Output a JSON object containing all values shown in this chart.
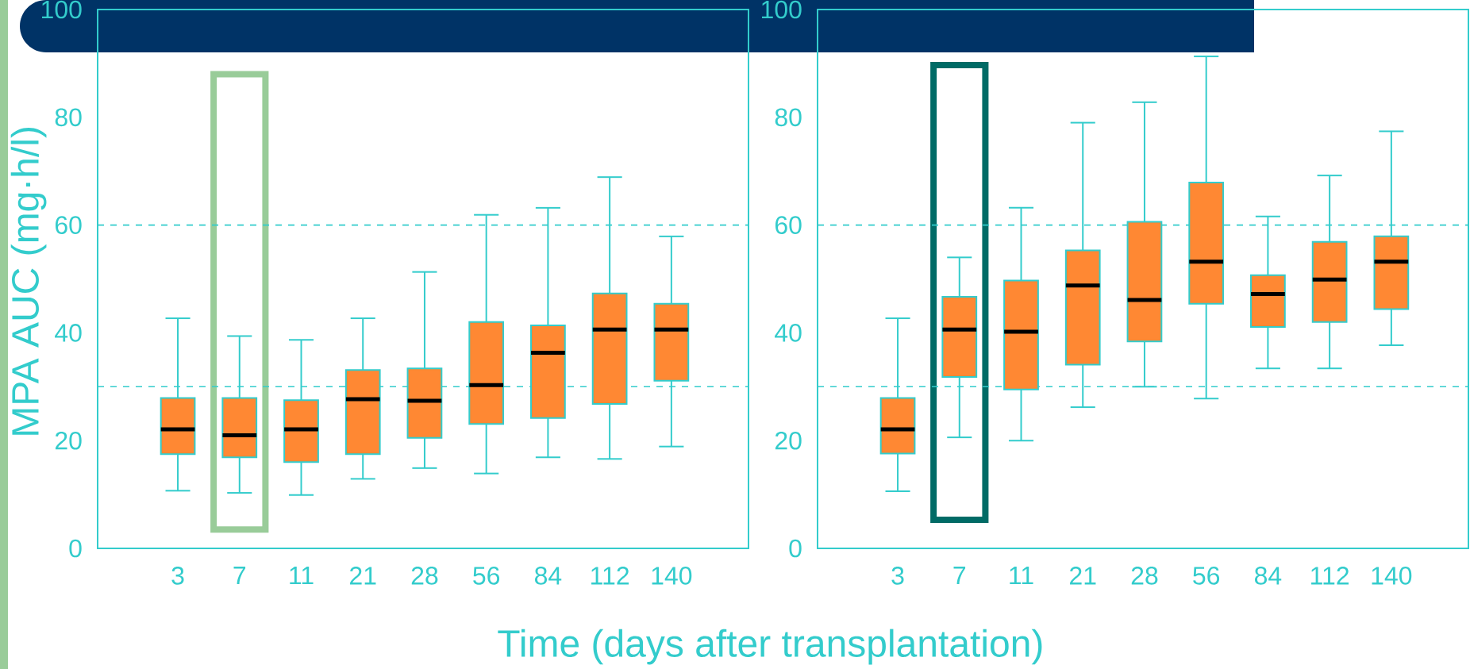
{
  "chart_data": [
    {
      "type": "box",
      "ylabel": "MPA AUC (mg·h/l)",
      "xlabel": "Time (days after transplantation)",
      "categories": [
        "3",
        "7",
        "11",
        "21",
        "28",
        "56",
        "84",
        "112",
        "140"
      ],
      "color": "#ff8833",
      "boxes": [
        {
          "low": 10.7,
          "q1": 17.5,
          "median": 22.1,
          "q3": 27.9,
          "high": 42.7
        },
        {
          "low": 10.3,
          "q1": 16.9,
          "median": 21.0,
          "q3": 27.9,
          "high": 39.4
        },
        {
          "low": 9.9,
          "q1": 16.0,
          "median": 22.1,
          "q3": 27.5,
          "high": 38.7
        },
        {
          "low": 12.9,
          "q1": 17.5,
          "median": 27.7,
          "q3": 33.1,
          "high": 42.7
        },
        {
          "low": 14.9,
          "q1": 20.5,
          "median": 27.4,
          "q3": 33.4,
          "high": 51.3
        },
        {
          "low": 13.9,
          "q1": 23.1,
          "median": 30.3,
          "q3": 42.0,
          "high": 61.9
        },
        {
          "low": 16.9,
          "q1": 24.2,
          "median": 36.3,
          "q3": 41.4,
          "high": 63.2
        },
        {
          "low": 16.6,
          "q1": 26.8,
          "median": 40.6,
          "q3": 47.3,
          "high": 68.9
        },
        {
          "low": 18.9,
          "q1": 31.1,
          "median": 40.6,
          "q3": 45.4,
          "high": 57.9
        }
      ],
      "ylim": [
        0,
        100
      ],
      "yticks": [
        0,
        20,
        40,
        60,
        80,
        100
      ],
      "ref_lines": [
        {
          "axis": "y",
          "value": 30,
          "color": "#33cccc",
          "line_style": "dashed"
        },
        {
          "axis": "y",
          "value": 60,
          "color": "#33cccc",
          "line_style": "dashed"
        }
      ]
    },
    {
      "type": "box",
      "categories": [
        "3",
        "7",
        "11",
        "21",
        "28",
        "56",
        "84",
        "112",
        "140"
      ],
      "color": "#ff8833",
      "boxes": [
        {
          "low": 10.6,
          "q1": 17.6,
          "median": 22.1,
          "q3": 27.9,
          "high": 42.7
        },
        {
          "low": 20.6,
          "q1": 31.8,
          "median": 40.6,
          "q3": 46.7,
          "high": 54.0
        },
        {
          "low": 20.0,
          "q1": 29.5,
          "median": 40.2,
          "q3": 49.7,
          "high": 63.2
        },
        {
          "low": 26.2,
          "q1": 34.1,
          "median": 48.8,
          "q3": 55.3,
          "high": 79.0
        },
        {
          "low": 30.0,
          "q1": 38.4,
          "median": 46.1,
          "q3": 60.6,
          "high": 82.8
        },
        {
          "low": 27.8,
          "q1": 45.4,
          "median": 53.2,
          "q3": 67.9,
          "high": 91.3
        },
        {
          "low": 33.4,
          "q1": 41.1,
          "median": 47.2,
          "q3": 50.7,
          "high": 61.6
        },
        {
          "low": 33.4,
          "q1": 42.0,
          "median": 49.9,
          "q3": 56.9,
          "high": 69.2
        },
        {
          "low": 37.7,
          "q1": 44.4,
          "median": 53.2,
          "q3": 57.9,
          "high": 77.4
        }
      ],
      "ylim": [
        0,
        100
      ],
      "yticks": [
        0,
        20,
        40,
        60,
        80,
        100
      ],
      "ref_lines": [
        {
          "axis": "y",
          "value": 30,
          "color": "#33cccc",
          "line_style": "dashed"
        },
        {
          "axis": "y",
          "value": 60,
          "color": "#33cccc",
          "line_style": "dashed"
        }
      ]
    }
  ]
}
